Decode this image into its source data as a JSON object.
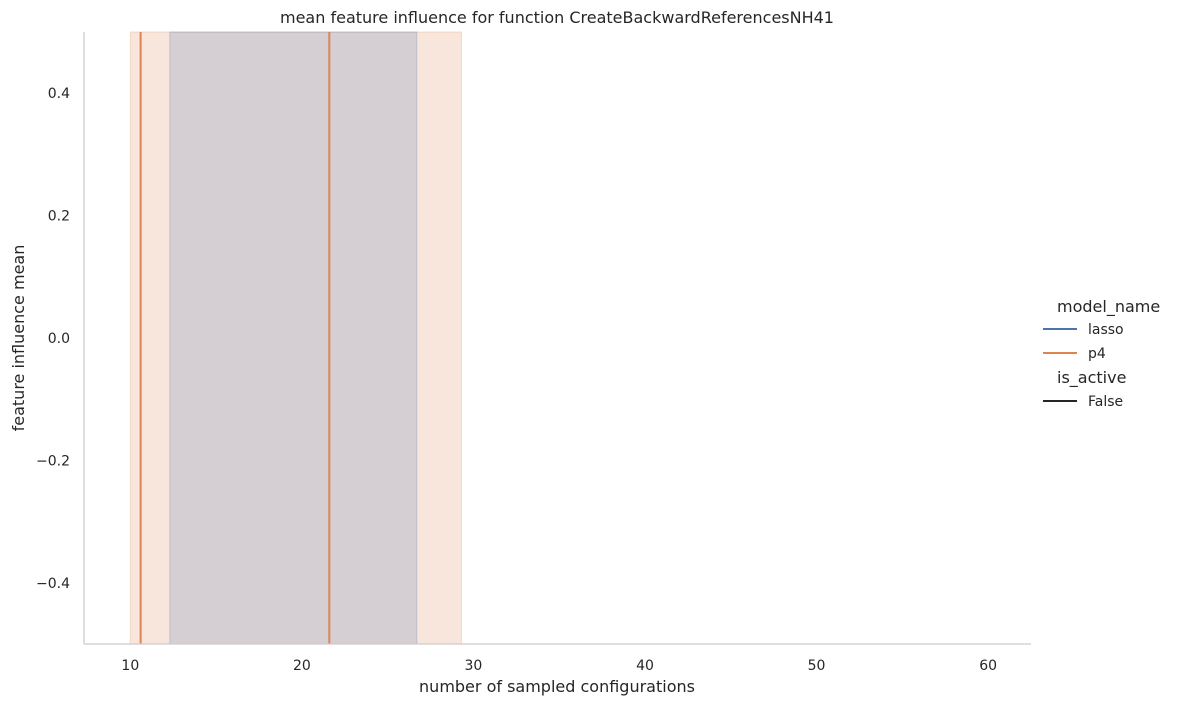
{
  "chart_data": {
    "type": "line",
    "title": "mean feature influence for function CreateBackwardReferencesNH41",
    "xlabel": "number of sampled configurations",
    "ylabel": "feature influence mean",
    "xlim": [
      7.3,
      62.5
    ],
    "ylim": [
      -0.5,
      0.5
    ],
    "xticks": [
      10,
      20,
      30,
      40,
      50,
      60
    ],
    "yticks": [
      0.4,
      0.2,
      0.0,
      -0.2,
      -0.4
    ],
    "xtick_labels": [
      "10",
      "20",
      "30",
      "40",
      "50",
      "60"
    ],
    "ytick_labels": [
      "0.4",
      "0.2",
      "0.0",
      "−0.2",
      "−0.4"
    ],
    "grid": false,
    "legend_position": "right",
    "series": [
      {
        "name": "lasso",
        "color": "#4c72b0",
        "band": [
          12.3,
          26.7
        ],
        "lines_x": []
      },
      {
        "name": "p4",
        "color": "#dd8452",
        "band": [
          10.0,
          29.3
        ],
        "lines_x": [
          10.6,
          21.6
        ]
      }
    ],
    "legend": {
      "hue_title": "model_name",
      "hue_items": [
        {
          "label": "lasso",
          "color": "#4c72b0"
        },
        {
          "label": "p4",
          "color": "#dd8452"
        }
      ],
      "style_title": "is_active",
      "style_items": [
        {
          "label": "False",
          "color": "#262626"
        }
      ]
    }
  }
}
